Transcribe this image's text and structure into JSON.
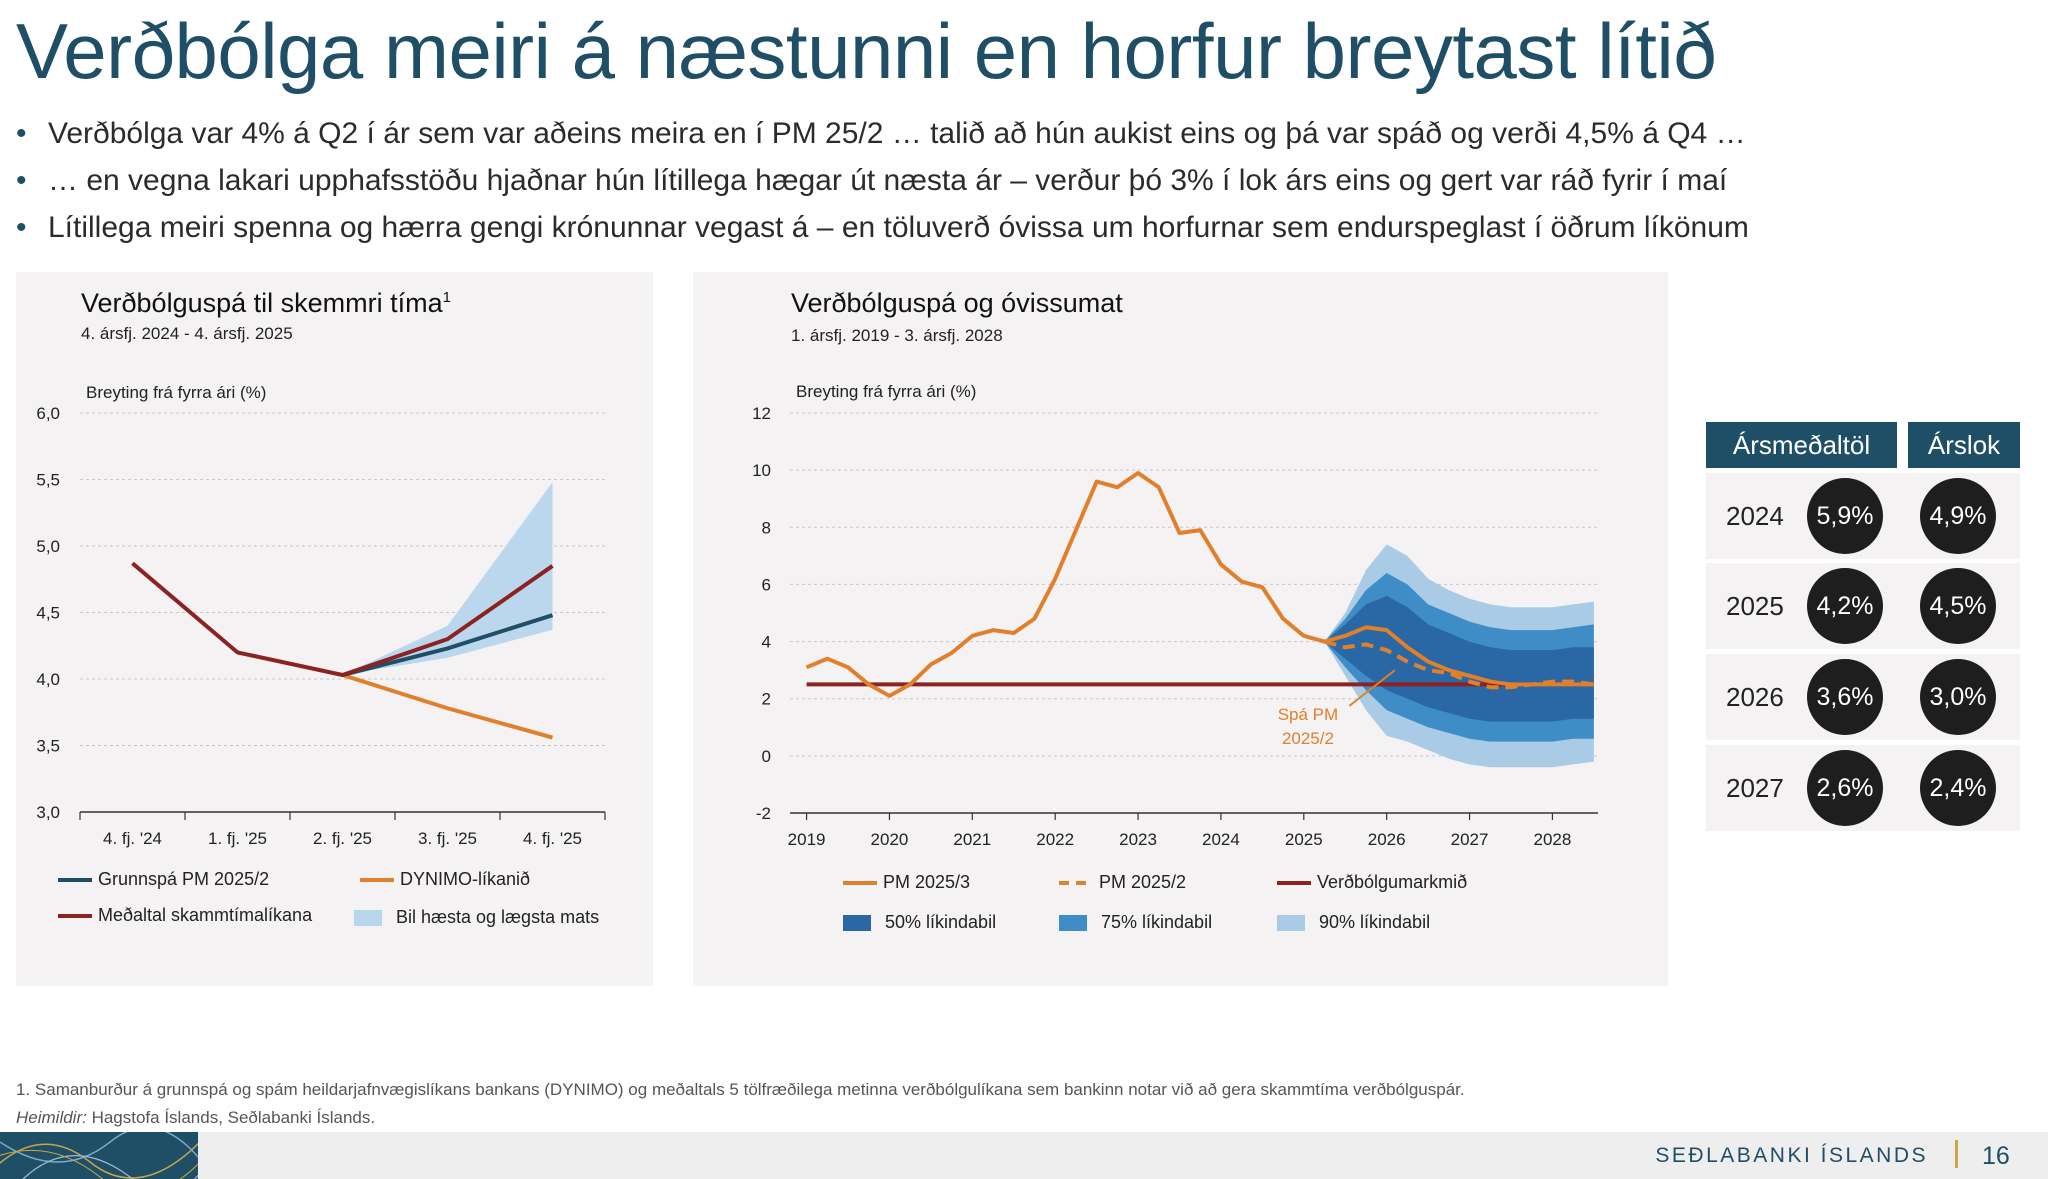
{
  "slide": {
    "title": "Verðbólga meiri á næstunni en horfur breytast lítið",
    "bullets": [
      "Verðbólga var 4% á Q2 í ár sem var aðeins meira en í PM 25/2 … talið að hún aukist eins og þá var spáð og verði 4,5% á Q4 …",
      "… en vegna lakari upphafsstöðu hjaðnar hún lítillega hægar út næsta ár – verður þó 3% í lok árs eins og gert var ráð fyrir í maí",
      "Lítillega meiri spenna og hærra gengi krónunnar vegast á – en töluverð óvissa um horfurnar sem endurspeglast í öðrum líkönum"
    ],
    "bullet_glyph": "•",
    "footnote": "1. Samanburður á grunnspá og spám heildarjafnvægislíkans bankans (DYNIMO) og meðaltals 5 tölfræðilega metinna verðbólgulíkana sem bankinn notar við að gera skammtíma verðbólguspár.",
    "source_label": "Heimildir:",
    "source_text": " Hagstofa Íslands, Seðlabanki Íslands.",
    "bank_name": "SEÐLABANKI ÍSLANDS",
    "page_number": "16",
    "colors": {
      "navy": "#1f4e67",
      "orange": "#e07f2c",
      "darkred": "#8b2323",
      "band": "#a9cbe6",
      "bandLight": "#b7d5ec",
      "ci50": "#2968a5",
      "ci75": "#3f8dc7",
      "ci90": "#a9cbe6"
    }
  },
  "chart_data": [
    {
      "type": "line",
      "title": "Verðbólguspá til skemmri tíma",
      "title_sup": "1",
      "subtitle": "4. ársfj. 2024 - 4. ársfj. 2025",
      "ylabel": "Breyting frá fyrra ári (%)",
      "categories": [
        "4. fj. '24",
        "1. fj. '25",
        "2. fj. '25",
        "3. fj. '25",
        "4. fj. '25"
      ],
      "ylim": [
        3.0,
        6.0
      ],
      "yticks": [
        "3,0",
        "3,5",
        "4,0",
        "4,5",
        "5,0",
        "5,5",
        "6,0"
      ],
      "grid": true,
      "series": [
        {
          "name": "Grunnspá PM 2025/2",
          "color": "#1f4e67",
          "values": [
            null,
            null,
            4.03,
            4.23,
            4.48
          ]
        },
        {
          "name": "DYNIMO-líkanið",
          "color": "#e07f2c",
          "values": [
            null,
            null,
            4.03,
            3.78,
            3.56
          ]
        },
        {
          "name": "Meðaltal skammtímalíkana",
          "color": "#8b2323",
          "values": [
            4.87,
            4.2,
            4.03,
            4.3,
            4.85
          ]
        }
      ],
      "band": {
        "name": "Bil hæsta og lægsta mats",
        "low": [
          null,
          null,
          4.03,
          4.16,
          4.37
        ],
        "high": [
          null,
          null,
          4.03,
          4.4,
          5.48
        ]
      },
      "legend": "bottom"
    },
    {
      "type": "line",
      "title": "Verðbólguspá og óvissumat",
      "subtitle": "1. ársfj. 2019 - 3. ársfj. 2028",
      "ylabel": "Breyting frá fyrra ári (%)",
      "xticks": [
        "2019",
        "2020",
        "2021",
        "2022",
        "2023",
        "2024",
        "2025",
        "2026",
        "2027",
        "2028"
      ],
      "ylim": [
        -2,
        12
      ],
      "yticks": [
        "-2",
        "0",
        "2",
        "4",
        "6",
        "8",
        "10",
        "12"
      ],
      "grid": true,
      "series": [
        {
          "name": "PM 2025/3",
          "color": "#e07f2c",
          "dash": false,
          "x": [
            2019.0,
            2019.25,
            2019.5,
            2019.75,
            2020.0,
            2020.25,
            2020.5,
            2020.75,
            2021.0,
            2021.25,
            2021.5,
            2021.75,
            2022.0,
            2022.25,
            2022.5,
            2022.75,
            2023.0,
            2023.25,
            2023.5,
            2023.75,
            2024.0,
            2024.25,
            2024.5,
            2024.75,
            2025.0,
            2025.25,
            2025.5,
            2025.75,
            2026.0,
            2026.25,
            2026.5,
            2026.75,
            2027.0,
            2027.25,
            2027.5,
            2027.75,
            2028.0,
            2028.25,
            2028.5
          ],
          "values": [
            3.1,
            3.4,
            3.1,
            2.5,
            2.1,
            2.5,
            3.2,
            3.6,
            4.2,
            4.4,
            4.3,
            4.8,
            6.2,
            7.9,
            9.6,
            9.4,
            9.9,
            9.4,
            7.8,
            7.9,
            6.7,
            6.1,
            5.9,
            4.8,
            4.2,
            4.0,
            4.2,
            4.5,
            4.4,
            3.8,
            3.3,
            3.0,
            2.8,
            2.6,
            2.5,
            2.5,
            2.5,
            2.5,
            2.5
          ]
        },
        {
          "name": "PM 2025/2",
          "color": "#e07f2c",
          "dash": true,
          "x": [
            2025.25,
            2025.5,
            2025.75,
            2026.0,
            2026.25,
            2026.5,
            2026.75,
            2027.0,
            2027.25,
            2027.5,
            2027.75,
            2028.0,
            2028.25,
            2028.5
          ],
          "values": [
            4.0,
            3.8,
            3.9,
            3.7,
            3.3,
            3.0,
            2.9,
            2.6,
            2.4,
            2.4,
            2.5,
            2.6,
            2.6,
            2.5
          ]
        },
        {
          "name": "Verðbólgumarkmið",
          "color": "#8b2323",
          "dash": false,
          "x": [
            2019.0,
            2028.5
          ],
          "values": [
            2.5,
            2.5
          ]
        }
      ],
      "fan": {
        "x": [
          2025.25,
          2025.5,
          2025.75,
          2026.0,
          2026.25,
          2026.5,
          2026.75,
          2027.0,
          2027.25,
          2027.5,
          2027.75,
          2028.0,
          2028.25,
          2028.5
        ],
        "p90": {
          "name": "90% líkindabil",
          "low": [
            4.0,
            2.8,
            1.6,
            0.7,
            0.5,
            0.2,
            -0.1,
            -0.3,
            -0.4,
            -0.4,
            -0.4,
            -0.4,
            -0.3,
            -0.2
          ],
          "high": [
            4.0,
            5.0,
            6.5,
            7.4,
            7.0,
            6.2,
            5.8,
            5.5,
            5.3,
            5.2,
            5.2,
            5.2,
            5.3,
            5.4
          ]
        },
        "p75": {
          "name": "75% líkindabil",
          "low": [
            4.0,
            3.1,
            2.3,
            1.6,
            1.3,
            1.0,
            0.8,
            0.6,
            0.5,
            0.5,
            0.5,
            0.5,
            0.6,
            0.6
          ],
          "high": [
            4.0,
            4.8,
            5.8,
            6.4,
            6.0,
            5.3,
            5.0,
            4.7,
            4.5,
            4.4,
            4.4,
            4.4,
            4.5,
            4.6
          ]
        },
        "p50": {
          "name": "50% líkindabil",
          "low": [
            4.0,
            3.4,
            2.8,
            2.3,
            2.0,
            1.7,
            1.5,
            1.3,
            1.2,
            1.2,
            1.2,
            1.2,
            1.3,
            1.3
          ],
          "high": [
            4.0,
            4.6,
            5.3,
            5.6,
            5.2,
            4.6,
            4.3,
            4.0,
            3.8,
            3.7,
            3.7,
            3.7,
            3.8,
            3.8
          ]
        }
      },
      "annotation": {
        "line1": "Spá PM",
        "line2": "2025/2",
        "color": "#e07f2c"
      },
      "legend": "bottom"
    }
  ],
  "table": {
    "headers": [
      "Ársmeðaltöl",
      "Árslok"
    ],
    "rows": [
      {
        "year": "2024",
        "avg": "5,9%",
        "end": "4,9%"
      },
      {
        "year": "2025",
        "avg": "4,2%",
        "end": "4,5%"
      },
      {
        "year": "2026",
        "avg": "3,6%",
        "end": "3,0%"
      },
      {
        "year": "2027",
        "avg": "2,6%",
        "end": "2,4%"
      }
    ]
  }
}
